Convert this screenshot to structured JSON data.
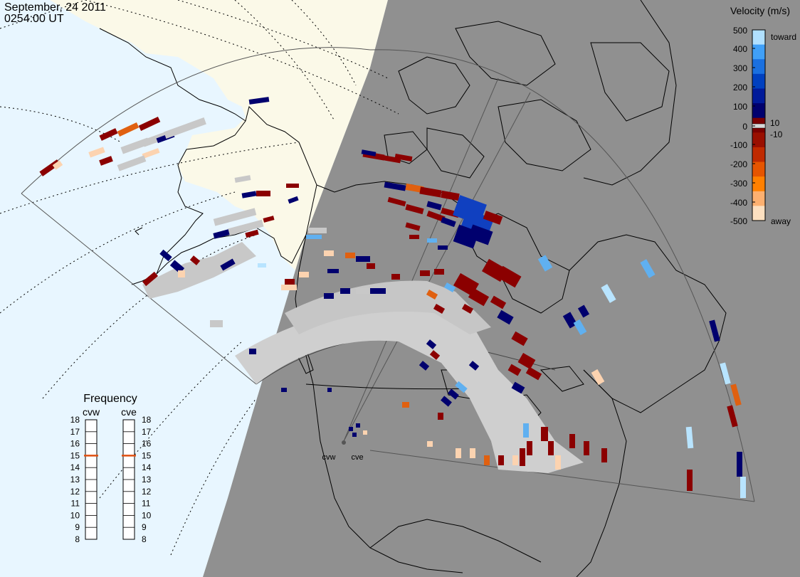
{
  "header": {
    "date": "September, 24 2011",
    "time": "0254:00 UT"
  },
  "radars": [
    {
      "code": "cvw"
    },
    {
      "code": "cve"
    }
  ],
  "colorbar": {
    "title": "Velocity (m/s)",
    "ticks": [
      "500",
      "400",
      "300",
      "200",
      "100",
      "10",
      "0",
      "-10",
      "-100",
      "-200",
      "-300",
      "-400",
      "-500"
    ],
    "toward_label": "toward",
    "away_label": "away",
    "colors": [
      "#fde0c0",
      "#fdb070",
      "#ff8000",
      "#e65500",
      "#c02a00",
      "#9a0f00",
      "#7a0000",
      "#00006e",
      "#001a9a",
      "#0040c0",
      "#1a70e0",
      "#40a0f8",
      "#b0e0ff"
    ]
  },
  "frequency_panel": {
    "title": "Frequency",
    "col_labels": [
      "cvw",
      "cve"
    ],
    "levels": [
      "18",
      "17",
      "16",
      "15",
      "14",
      "13",
      "12",
      "11",
      "10",
      "9",
      "8"
    ],
    "cvw_freq_mhz": 15,
    "cve_freq_mhz": 15,
    "marker_color": "#e05010"
  },
  "map_colors": {
    "ocean": "#e8f6ff",
    "land_day": "#fbf9e8",
    "night": "#909090",
    "ground_scatter": "#c8c8c8",
    "coast": "#000000"
  }
}
